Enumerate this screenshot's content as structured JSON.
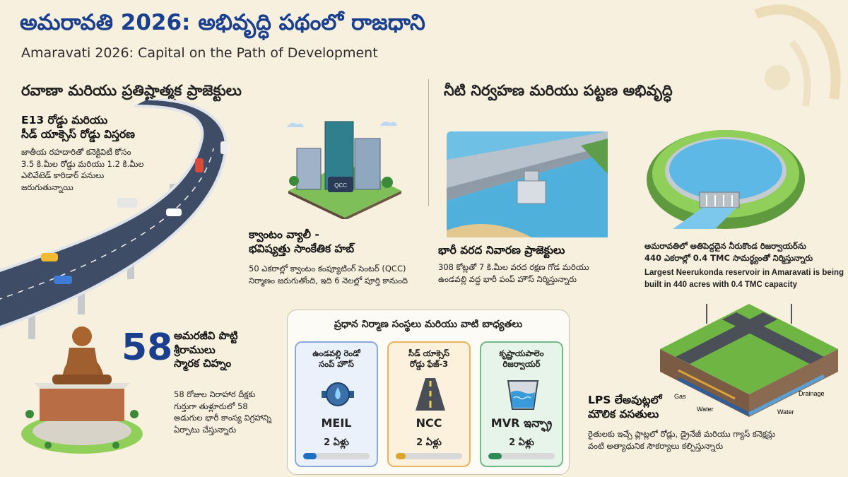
{
  "header": {
    "title_te": "అమరావతి 2026: అభివృద్ధి పథంలో రాజధాని",
    "title_en": "Amaravati 2026: Capital on the Path of Development"
  },
  "sections": {
    "left_heading": "రవాణా మరియు ప్రతిష్టాత్మక ప్రాజెక్టులు",
    "right_heading": "నీటి నిర్వహణ మరియు పట్టణ అభివృద్ధి"
  },
  "road": {
    "title_l1": "E13 రోడ్డు మరియు",
    "title_l2": "సీడ్ యాక్సెస్ రోడ్డు విస్తరణ",
    "desc_l1": "జాతీయ రహదారితో కనెక్టివిటీ కోసం",
    "desc_l2": "3.5 కి.మీల రోడ్డు మరియు 1.2 కి.మీల",
    "desc_l3": "ఎలివేటెడ్ కారిడార్ పనులు",
    "desc_l4": "జరుగుతున్నాయి"
  },
  "quantum": {
    "chip_label": "QCC",
    "title_l1": "క్వాంటం వ్యాలీ -",
    "title_l2": "భవిష్యత్తు సాంకేతిక హబ్",
    "desc_l1": "50 ఎకరాల్లో క్వాంటం కంప్యూటింగ్ సెంటర్ (QCC)",
    "desc_l2": "నిర్మాణం జరుగుతోంది, ఇది 6 నెలల్లో పూర్తి కానుంది"
  },
  "flood": {
    "title": "భారీ వరద నివారణ ప్రాజెక్టులు",
    "desc_l1": "308 కోట్లతో 7 కి.మీల వరద రక్షణ గోడ మరియు",
    "desc_l2": "ఉండవల్లి వద్ద భారీ పంప్ హౌస్ నిర్మిస్తున్నారు"
  },
  "reservoir": {
    "te_l1": "అమరావతిలో అతిపెద్దదైన నీరుకొండ రిజర్వాయర్‌ను",
    "te_l2": "440 ఎకరాల్లో 0.4 TMC సామర్థ్యంతో నిర్మిస్తున్నారు",
    "en_l1": "Largest Neerukonda reservoir in Amaravati is being",
    "en_l2": "built in 440 acres with 0.4 TMC capacity"
  },
  "memorial": {
    "number": "58",
    "title_l1": "అమరజీవి పొట్టి",
    "title_l2": "శ్రీరాములు",
    "title_l3": "స్మారక చిహ్నం",
    "desc_l1": "58 రోజుల నిరాహార దీక్షకు",
    "desc_l2": "గుర్తుగా తుళ్లూరులో 58",
    "desc_l3": "అడుగుల భారీ కాంస్య విగ్రహాన్ని",
    "desc_l4": "ఏర్పాటు చేస్తున్నారు"
  },
  "panel": {
    "title": "ప్రధాన నిర్మాణ సంస్థలు మరియు వాటి బాధ్యతలు",
    "cards": [
      {
        "name_l1": "ఉండవల్లి రెండో",
        "name_l2": "సంప్ హౌస్",
        "company": "MEIL",
        "duration": "2 ఏళ్లు",
        "icon": "pump-icon",
        "color": "#1f6fc0",
        "progress": 0.2
      },
      {
        "name_l1": "సీడ్ యాక్సెస్",
        "name_l2": "రోడ్డు ఫేజ్-3",
        "company": "NCC",
        "duration": "2 ఏళ్లు",
        "icon": "road-icon",
        "color": "#e0a528",
        "progress": 0.15
      },
      {
        "name_l1": "కృష్ణాయపాలెం",
        "name_l2": "రిజర్వాయర్",
        "company": "MVR ఇన్ఫ్రా",
        "duration": "2 ఏళ్లు",
        "icon": "reservoir-icon",
        "color": "#2e8b57",
        "progress": 0.2
      }
    ]
  },
  "lps": {
    "label_gas": "Gas",
    "label_drainage": "Drainage",
    "label_water_1": "Water",
    "label_water_2": "Water",
    "title_l1": "LPS లేఅవుట్లలో",
    "title_l2": "మౌలిక వసతులు",
    "desc_l1": "రైతులకు ఇచ్చే ప్లాట్లలో రోడ్లు, డ్రైనేజీ మరియు గ్యాస్ కనెక్షన్లు",
    "desc_l2": "వంటి అత్యాధునిక సౌకర్యాలు కల్పిస్తున్నారు"
  }
}
